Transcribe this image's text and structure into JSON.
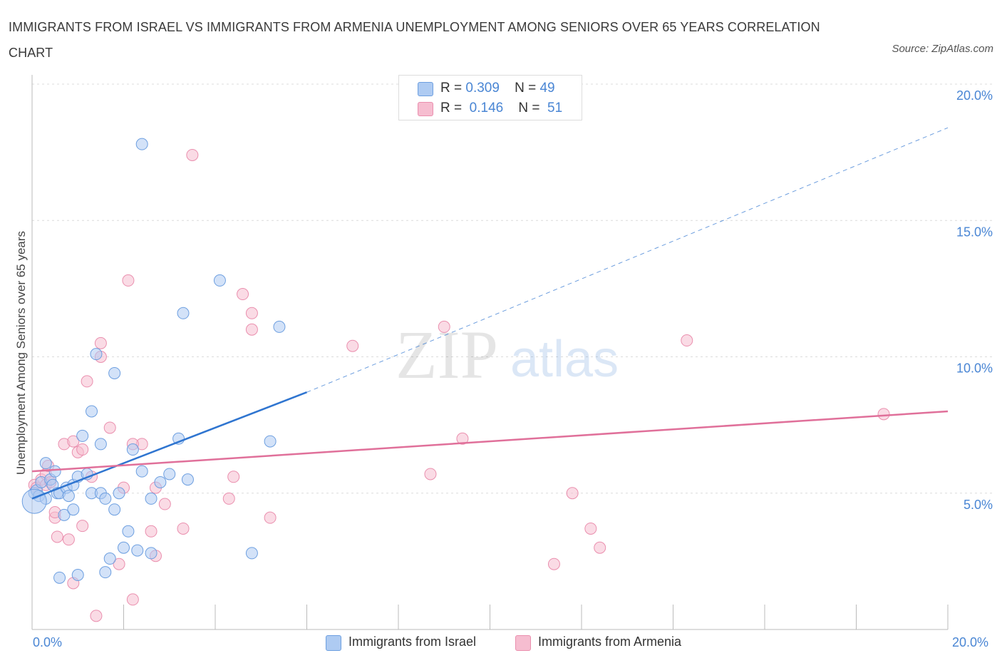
{
  "title": "IMMIGRANTS FROM ISRAEL VS IMMIGRANTS FROM ARMENIA UNEMPLOYMENT AMONG SENIORS OVER 65 YEARS CORRELATION CHART",
  "source": "Source: ZipAtlas.com",
  "watermark": {
    "zip": "ZIP",
    "atlas": "atlas"
  },
  "legend_top": [
    {
      "r_label": "R =",
      "r_value": "0.309",
      "n_label": "N =",
      "n_value": "49"
    },
    {
      "r_label": "R =",
      "r_value": "0.146",
      "n_label": "N =",
      "n_value": "51"
    }
  ],
  "colors": {
    "israel_fill": "#aecbf2",
    "israel_stroke": "#6d9fe0",
    "israel_line": "#2f75d0",
    "armenia_fill": "#f6bdd0",
    "armenia_stroke": "#ea8fae",
    "armenia_line": "#e0709a",
    "axis_label": "#4a86d4",
    "grid": "#dcdcdc"
  },
  "chart_data": {
    "type": "scatter",
    "title": "IMMIGRANTS FROM ISRAEL VS IMMIGRANTS FROM ARMENIA UNEMPLOYMENT AMONG SENIORS OVER 65 YEARS CORRELATION CHART",
    "xlabel": "",
    "ylabel": "Unemployment Among Seniors over 65 years",
    "xlim": [
      0,
      20
    ],
    "ylim": [
      0,
      20
    ],
    "x_tick_labels": [
      "0.0%",
      "20.0%"
    ],
    "y_ticks": [
      5,
      10,
      15,
      20
    ],
    "y_tick_labels": [
      "5.0%",
      "10.0%",
      "15.0%",
      "20.0%"
    ],
    "grid": true,
    "legend": [
      "Immigrants from Israel",
      "Immigrants from Armenia"
    ],
    "series": [
      {
        "name": "Immigrants from Israel",
        "R": 0.309,
        "N": 49,
        "trend": {
          "x": [
            0,
            6.0
          ],
          "y": [
            4.8,
            8.7
          ],
          "dashed_extension": {
            "x": [
              6.0,
              20
            ],
            "y": [
              8.7,
              18.4
            ]
          }
        },
        "points": [
          [
            0.05,
            5.0
          ],
          [
            0.1,
            5.1
          ],
          [
            0.15,
            4.9
          ],
          [
            0.2,
            5.4
          ],
          [
            0.3,
            6.1
          ],
          [
            0.3,
            4.8
          ],
          [
            0.4,
            5.5
          ],
          [
            0.45,
            5.3
          ],
          [
            0.5,
            5.8
          ],
          [
            0.55,
            5.0
          ],
          [
            0.6,
            5.0
          ],
          [
            0.7,
            4.2
          ],
          [
            0.75,
            5.2
          ],
          [
            0.8,
            4.9
          ],
          [
            0.9,
            4.4
          ],
          [
            0.9,
            5.3
          ],
          [
            1.0,
            5.6
          ],
          [
            1.1,
            7.1
          ],
          [
            1.2,
            5.7
          ],
          [
            1.3,
            8.0
          ],
          [
            1.3,
            5.0
          ],
          [
            1.4,
            10.1
          ],
          [
            1.5,
            6.8
          ],
          [
            1.5,
            5.0
          ],
          [
            1.6,
            4.8
          ],
          [
            1.7,
            2.6
          ],
          [
            1.8,
            4.4
          ],
          [
            1.8,
            9.4
          ],
          [
            1.9,
            5.0
          ],
          [
            2.0,
            3.0
          ],
          [
            2.1,
            3.6
          ],
          [
            2.2,
            6.6
          ],
          [
            2.3,
            2.9
          ],
          [
            2.4,
            17.8
          ],
          [
            2.4,
            5.8
          ],
          [
            2.6,
            4.8
          ],
          [
            2.6,
            2.8
          ],
          [
            2.8,
            5.4
          ],
          [
            3.0,
            5.7
          ],
          [
            3.2,
            7.0
          ],
          [
            3.3,
            11.6
          ],
          [
            3.4,
            5.5
          ],
          [
            4.1,
            12.8
          ],
          [
            4.8,
            2.8
          ],
          [
            5.2,
            6.9
          ],
          [
            5.4,
            11.1
          ],
          [
            0.6,
            1.9
          ],
          [
            1.0,
            2.0
          ],
          [
            1.6,
            2.1
          ]
        ]
      },
      {
        "name": "Immigrants from Armenia",
        "R": 0.146,
        "N": 51,
        "trend": {
          "x": [
            0,
            20
          ],
          "y": [
            5.8,
            8.0
          ]
        },
        "points": [
          [
            0.05,
            5.3
          ],
          [
            0.1,
            5.2
          ],
          [
            0.2,
            5.5
          ],
          [
            0.3,
            5.7
          ],
          [
            0.3,
            5.3
          ],
          [
            0.4,
            5.4
          ],
          [
            0.5,
            4.1
          ],
          [
            0.5,
            4.3
          ],
          [
            0.55,
            3.4
          ],
          [
            0.7,
            6.8
          ],
          [
            0.8,
            3.3
          ],
          [
            0.9,
            6.9
          ],
          [
            0.9,
            1.7
          ],
          [
            1.0,
            6.5
          ],
          [
            1.1,
            3.8
          ],
          [
            1.2,
            9.1
          ],
          [
            1.3,
            5.6
          ],
          [
            1.4,
            0.5
          ],
          [
            1.5,
            10.0
          ],
          [
            1.5,
            10.5
          ],
          [
            1.7,
            7.4
          ],
          [
            1.9,
            2.4
          ],
          [
            2.0,
            5.2
          ],
          [
            2.1,
            12.8
          ],
          [
            2.2,
            1.1
          ],
          [
            2.4,
            6.8
          ],
          [
            2.6,
            3.6
          ],
          [
            2.7,
            5.2
          ],
          [
            2.7,
            2.7
          ],
          [
            2.9,
            4.6
          ],
          [
            3.3,
            3.7
          ],
          [
            3.5,
            17.4
          ],
          [
            4.3,
            4.8
          ],
          [
            4.4,
            5.6
          ],
          [
            4.6,
            12.3
          ],
          [
            4.8,
            11.6
          ],
          [
            4.8,
            11.0
          ],
          [
            5.2,
            4.1
          ],
          [
            7.0,
            10.4
          ],
          [
            8.7,
            5.7
          ],
          [
            9.0,
            11.1
          ],
          [
            9.4,
            7.0
          ],
          [
            11.4,
            2.4
          ],
          [
            11.8,
            5.0
          ],
          [
            12.2,
            3.7
          ],
          [
            12.4,
            3.0
          ],
          [
            14.3,
            10.6
          ],
          [
            18.6,
            7.9
          ],
          [
            0.35,
            6.0
          ],
          [
            1.1,
            6.6
          ],
          [
            2.2,
            6.8
          ]
        ]
      }
    ]
  }
}
